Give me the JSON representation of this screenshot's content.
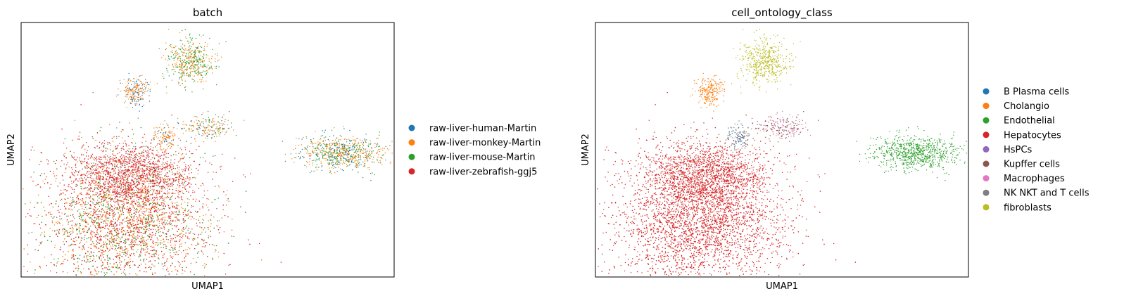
{
  "chart_data": [
    {
      "type": "scatter",
      "title": "batch",
      "xlabel": "UMAP1",
      "ylabel": "UMAP2",
      "legend_position": "right",
      "grid": false,
      "ticks": false,
      "series": [
        {
          "name": "raw-liver-human-Martin",
          "color": "#1f77b4"
        },
        {
          "name": "raw-liver-monkey-Martin",
          "color": "#ff7f0e"
        },
        {
          "name": "raw-liver-mouse-Martin",
          "color": "#2ca02c"
        },
        {
          "name": "raw-liver-zebrafish-ggj5",
          "color": "#d62728"
        }
      ]
    },
    {
      "type": "scatter",
      "title": "cell_ontology_class",
      "xlabel": "UMAP1",
      "ylabel": "UMAP2",
      "legend_position": "right",
      "grid": false,
      "ticks": false,
      "series": [
        {
          "name": "B Plasma cells",
          "color": "#1f77b4"
        },
        {
          "name": "Cholangio",
          "color": "#ff7f0e"
        },
        {
          "name": "Endothelial",
          "color": "#2ca02c"
        },
        {
          "name": "Hepatocytes",
          "color": "#d62728"
        },
        {
          "name": "HsPCs",
          "color": "#9467bd"
        },
        {
          "name": "Kupffer cells",
          "color": "#8c564b"
        },
        {
          "name": "Macrophages",
          "color": "#e377c2"
        },
        {
          "name": "NK NKT and T cells",
          "color": "#7f7f7f"
        },
        {
          "name": "fibroblasts",
          "color": "#bcbd22"
        }
      ]
    }
  ]
}
